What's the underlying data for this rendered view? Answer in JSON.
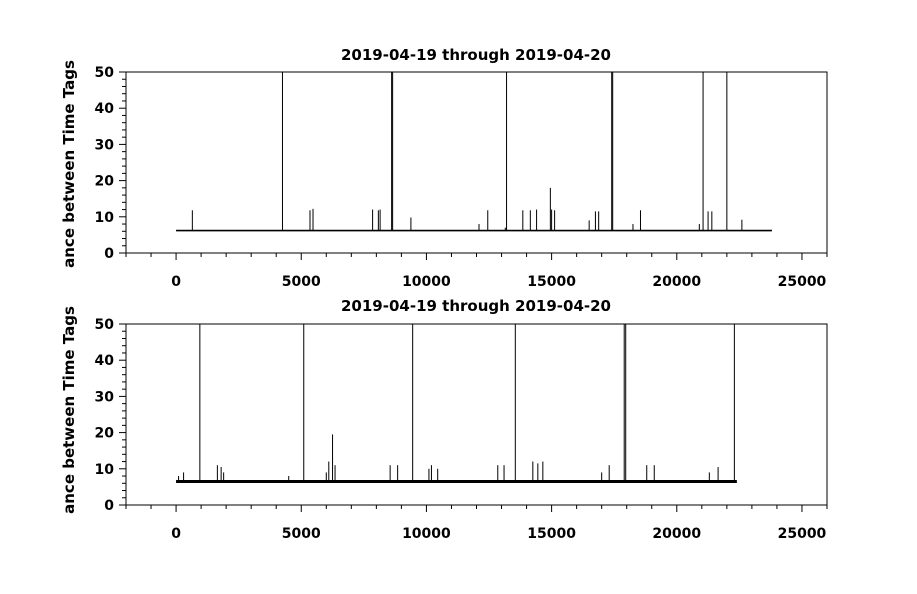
{
  "chart_data": [
    {
      "type": "line",
      "title": "2019-04-19 through 2019-04-20",
      "xlabel": "",
      "ylabel": "ance between Time Tags",
      "xlim": [
        -2000,
        26000
      ],
      "ylim": [
        0,
        50
      ],
      "xticks": [
        0,
        5000,
        10000,
        15000,
        20000,
        25000
      ],
      "xtick_labels": [
        "0",
        "5000",
        "10000",
        "15000",
        "20000",
        "25000"
      ],
      "yticks": [
        0,
        10,
        20,
        30,
        40,
        50
      ],
      "ytick_labels": [
        "0",
        "10",
        "20",
        "30",
        "40",
        "50"
      ],
      "grid": false,
      "series_color": "#000000",
      "baseline": {
        "x_start": 0,
        "x_end": 23800,
        "y": 6.2
      },
      "spikes": [
        {
          "x": 650,
          "y": 11.8
        },
        {
          "x": 4250,
          "y": 50
        },
        {
          "x": 5350,
          "y": 11.8
        },
        {
          "x": 5470,
          "y": 12.2
        },
        {
          "x": 7850,
          "y": 12.0
        },
        {
          "x": 8080,
          "y": 11.8
        },
        {
          "x": 8150,
          "y": 12.0
        },
        {
          "x": 8610,
          "y": 50
        },
        {
          "x": 8650,
          "y": 50
        },
        {
          "x": 9380,
          "y": 9.8
        },
        {
          "x": 12100,
          "y": 8.0
        },
        {
          "x": 12450,
          "y": 11.8
        },
        {
          "x": 13150,
          "y": 7.0
        },
        {
          "x": 13200,
          "y": 50
        },
        {
          "x": 13850,
          "y": 11.8
        },
        {
          "x": 14150,
          "y": 11.8
        },
        {
          "x": 14400,
          "y": 12.0
        },
        {
          "x": 14950,
          "y": 18.0
        },
        {
          "x": 15000,
          "y": 12.0
        },
        {
          "x": 15120,
          "y": 11.8
        },
        {
          "x": 16500,
          "y": 9.0
        },
        {
          "x": 16750,
          "y": 11.5
        },
        {
          "x": 16880,
          "y": 11.5
        },
        {
          "x": 17400,
          "y": 50
        },
        {
          "x": 17440,
          "y": 50
        },
        {
          "x": 18250,
          "y": 8.0
        },
        {
          "x": 18550,
          "y": 11.8
        },
        {
          "x": 20900,
          "y": 8.0
        },
        {
          "x": 21050,
          "y": 50
        },
        {
          "x": 21250,
          "y": 11.5
        },
        {
          "x": 21400,
          "y": 11.5
        },
        {
          "x": 22000,
          "y": 50
        },
        {
          "x": 22600,
          "y": 9.2
        }
      ]
    },
    {
      "type": "line",
      "title": "2019-04-19 through 2019-04-20",
      "xlabel": "",
      "ylabel": "ance between Time Tags",
      "xlim": [
        -2000,
        26000
      ],
      "ylim": [
        0,
        50
      ],
      "xticks": [
        0,
        5000,
        10000,
        15000,
        20000,
        25000
      ],
      "xtick_labels": [
        "0",
        "5000",
        "10000",
        "15000",
        "20000",
        "25000"
      ],
      "yticks": [
        0,
        10,
        20,
        30,
        40,
        50
      ],
      "ytick_labels": [
        "0",
        "10",
        "20",
        "30",
        "40",
        "50"
      ],
      "grid": false,
      "series_color": "#000000",
      "baseline": {
        "x_start": 0,
        "x_end": 22400,
        "y": 6.5
      },
      "spikes": [
        {
          "x": 100,
          "y": 8.0
        },
        {
          "x": 300,
          "y": 9.0
        },
        {
          "x": 950,
          "y": 50
        },
        {
          "x": 1650,
          "y": 11.0
        },
        {
          "x": 1800,
          "y": 10.5
        },
        {
          "x": 1900,
          "y": 9.0
        },
        {
          "x": 4500,
          "y": 8.0
        },
        {
          "x": 5100,
          "y": 50
        },
        {
          "x": 6000,
          "y": 9.0
        },
        {
          "x": 6100,
          "y": 12.0
        },
        {
          "x": 6250,
          "y": 19.5
        },
        {
          "x": 6350,
          "y": 11.0
        },
        {
          "x": 8550,
          "y": 11.0
        },
        {
          "x": 8850,
          "y": 11.0
        },
        {
          "x": 9450,
          "y": 50
        },
        {
          "x": 10100,
          "y": 10.0
        },
        {
          "x": 10200,
          "y": 11.0
        },
        {
          "x": 10450,
          "y": 10.0
        },
        {
          "x": 12850,
          "y": 11.0
        },
        {
          "x": 13100,
          "y": 11.0
        },
        {
          "x": 13550,
          "y": 50
        },
        {
          "x": 14250,
          "y": 12.0
        },
        {
          "x": 14450,
          "y": 11.5
        },
        {
          "x": 14650,
          "y": 12.0
        },
        {
          "x": 17000,
          "y": 9.0
        },
        {
          "x": 17300,
          "y": 11.0
        },
        {
          "x": 17900,
          "y": 50
        },
        {
          "x": 17960,
          "y": 50
        },
        {
          "x": 18800,
          "y": 11.0
        },
        {
          "x": 19100,
          "y": 11.0
        },
        {
          "x": 21300,
          "y": 9.0
        },
        {
          "x": 21650,
          "y": 10.5
        },
        {
          "x": 22300,
          "y": 50
        }
      ]
    }
  ]
}
